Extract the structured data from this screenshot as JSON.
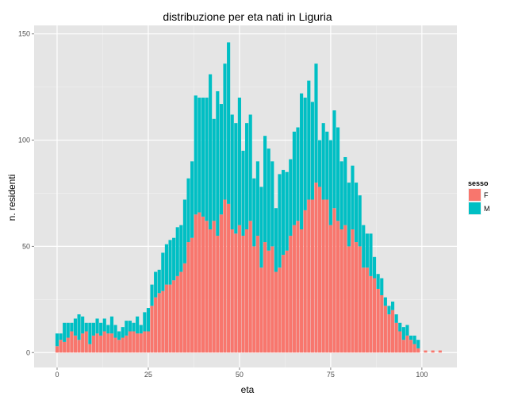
{
  "chart_data": {
    "type": "bar",
    "stacked": true,
    "title": "distribuzione per eta nati in Liguria",
    "xlabel": "eta",
    "ylabel": "n. residenti",
    "xlim": [
      -6.3,
      109.6
    ],
    "ylim": [
      -7,
      154
    ],
    "xticks": [
      0,
      25,
      50,
      75,
      100
    ],
    "yticks": [
      0,
      50,
      100,
      150
    ],
    "grid": true,
    "legend": {
      "title": "sesso",
      "position": "right",
      "entries": [
        {
          "label": "F",
          "color": "#f8766d"
        },
        {
          "label": "M",
          "color": "#00bfc4"
        }
      ]
    },
    "x": [
      0,
      1,
      2,
      3,
      4,
      5,
      6,
      7,
      8,
      9,
      10,
      11,
      12,
      13,
      14,
      15,
      16,
      17,
      18,
      19,
      20,
      21,
      22,
      23,
      24,
      25,
      26,
      27,
      28,
      29,
      30,
      31,
      32,
      33,
      34,
      35,
      36,
      37,
      38,
      39,
      40,
      41,
      42,
      43,
      44,
      45,
      46,
      47,
      48,
      49,
      50,
      51,
      52,
      53,
      54,
      55,
      56,
      57,
      58,
      59,
      60,
      61,
      62,
      63,
      64,
      65,
      66,
      67,
      68,
      69,
      70,
      71,
      72,
      73,
      74,
      75,
      76,
      77,
      78,
      79,
      80,
      81,
      82,
      83,
      84,
      85,
      86,
      87,
      88,
      89,
      90,
      91,
      92,
      93,
      94,
      95,
      96,
      97,
      98,
      99,
      100,
      101,
      102,
      103,
      104,
      105
    ],
    "series": [
      {
        "name": "F",
        "color": "#f8766d",
        "values": [
          3,
          6,
          5,
          7,
          10,
          8,
          6,
          9,
          10,
          4,
          8,
          9,
          8,
          10,
          9,
          9,
          7,
          6,
          7,
          8,
          10,
          10,
          9,
          9,
          10,
          10,
          22,
          26,
          28,
          29,
          32,
          32,
          34,
          36,
          38,
          42,
          52,
          54,
          65,
          66,
          64,
          62,
          58,
          62,
          55,
          65,
          72,
          70,
          58,
          56,
          60,
          55,
          58,
          62,
          50,
          55,
          40,
          52,
          48,
          50,
          38,
          40,
          46,
          48,
          55,
          60,
          62,
          58,
          67,
          72,
          72,
          80,
          78,
          72,
          72,
          60,
          68,
          62,
          58,
          60,
          50,
          58,
          52,
          50,
          40,
          40,
          36,
          35,
          30,
          27,
          22,
          18,
          20,
          14,
          10,
          6,
          8,
          6,
          4,
          2,
          0,
          0,
          0,
          0,
          0,
          0
        ],
        "top_values": [
          null,
          null,
          null,
          null,
          null,
          null,
          null,
          null,
          null,
          null,
          null,
          null,
          null,
          null,
          null,
          null,
          null,
          null,
          null,
          null,
          null,
          null,
          null,
          null,
          null,
          null,
          null,
          null,
          null,
          null,
          null,
          null,
          null,
          null,
          null,
          null,
          null,
          null,
          null,
          null,
          null,
          null,
          null,
          null,
          null,
          null,
          null,
          null,
          null,
          null,
          null,
          null,
          null,
          null,
          null,
          null,
          null,
          null,
          null,
          null,
          null,
          null,
          null,
          null,
          null,
          null,
          null,
          null,
          null,
          null,
          null,
          null,
          null,
          null,
          null,
          null,
          null,
          null,
          null,
          null,
          null,
          null,
          null,
          null,
          null,
          null,
          null,
          null,
          null,
          null,
          null,
          null,
          null,
          null,
          null,
          null,
          null,
          null,
          null,
          null,
          null,
          1,
          null,
          1,
          null,
          1
        ]
      },
      {
        "name": "M",
        "values": [
          6,
          3,
          9,
          7,
          4,
          8,
          12,
          8,
          4,
          10,
          6,
          7,
          6,
          6,
          4,
          8,
          6,
          4,
          5,
          7,
          5,
          4,
          8,
          4,
          9,
          11,
          10,
          12,
          11,
          18,
          19,
          21,
          20,
          23,
          22,
          30,
          30,
          36,
          56,
          54,
          56,
          58,
          73,
          48,
          68,
          52,
          64,
          76,
          54,
          52,
          60,
          40,
          50,
          50,
          32,
          35,
          38,
          50,
          48,
          40,
          30,
          44,
          40,
          37,
          36,
          44,
          44,
          64,
          53,
          56,
          46,
          56,
          22,
          36,
          32,
          40,
          46,
          44,
          32,
          32,
          30,
          30,
          28,
          24,
          20,
          16,
          20,
          10,
          7,
          8,
          4,
          4,
          4,
          4,
          4,
          6,
          5,
          2,
          4,
          4,
          0,
          0,
          0,
          0,
          0,
          0
        ]
      }
    ]
  }
}
